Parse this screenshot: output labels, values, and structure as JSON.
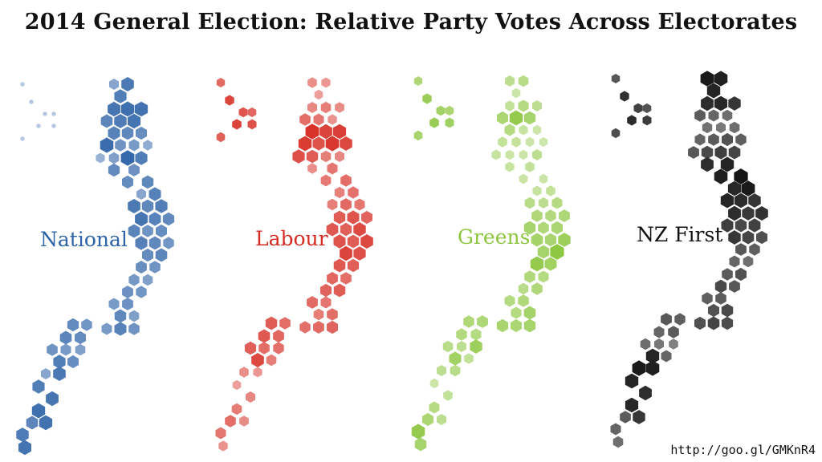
{
  "title": "2014 General Election: Relative Party Votes Across Electorates",
  "source": "http://goo.gl/GMKnR4",
  "chart_data": {
    "type": "hexbin-map",
    "scale": "relative party vote share per electorate (0 = lowest, 1 = highest); shown by hexagon size and color intensity",
    "panels": [
      {
        "party": "National",
        "color": "#2e63a8",
        "values": {
          "north_island": [
            0.45,
            0.82,
            0.78,
            0.85,
            0.9,
            0.88,
            0.72,
            0.8,
            0.86,
            0.75,
            0.7,
            0.65,
            0.92,
            0.6,
            0.55,
            0.4,
            0.35,
            0.5,
            0.95,
            0.78,
            0.68,
            0.62,
            0.7,
            0.66,
            0.45,
            0.75,
            0.82,
            0.7,
            0.78,
            0.85,
            0.74,
            0.68,
            0.72,
            0.6,
            0.65,
            0.76,
            0.7,
            0.58,
            0.66,
            0.72,
            0.64,
            0.6,
            0.56,
            0.5,
            0.62,
            0.58,
            0.55
          ],
          "south_island": [
            0.62,
            0.7,
            0.5,
            0.55,
            0.75,
            0.6,
            0.68,
            0.58,
            0.72,
            0.66,
            0.6,
            0.55,
            0.5,
            0.78,
            0.65
          ]
        }
      },
      {
        "party": "Labour",
        "color": "#d62b22",
        "values": {
          "north_island": [
            0.4,
            0.35,
            0.3,
            0.45,
            0.5,
            0.42,
            0.6,
            0.55,
            0.38,
            0.95,
            0.85,
            0.88,
            0.9,
            0.75,
            0.92,
            0.82,
            0.78,
            0.7,
            0.5,
            0.45,
            0.4,
            0.55,
            0.6,
            0.52,
            0.48,
            0.58,
            0.5,
            0.62,
            0.55,
            0.7,
            0.75,
            0.65,
            0.72,
            0.68,
            0.8,
            0.76,
            0.7,
            0.82,
            0.85,
            0.78,
            0.72,
            0.68,
            0.64,
            0.6,
            0.66,
            0.7,
            0.62
          ],
          "south_island": [
            0.55,
            0.5,
            0.6,
            0.58,
            0.62,
            0.66,
            0.7,
            0.6,
            0.72,
            0.64,
            0.68,
            0.6,
            0.58,
            0.82,
            0.5
          ]
        }
      },
      {
        "party": "Greens",
        "color": "#8cc63f",
        "values": {
          "north_island": [
            0.45,
            0.5,
            0.3,
            0.4,
            0.55,
            0.45,
            0.65,
            0.9,
            0.7,
            0.55,
            0.35,
            0.3,
            0.4,
            0.38,
            0.3,
            0.28,
            0.35,
            0.32,
            0.3,
            0.45,
            0.35,
            0.4,
            0.3,
            0.32,
            0.35,
            0.4,
            0.5,
            0.45,
            0.55,
            0.6,
            0.58,
            0.62,
            0.7,
            0.6,
            0.66,
            0.72,
            0.68,
            0.8,
            0.7,
            0.98,
            0.9,
            0.75,
            0.6,
            0.55,
            0.5,
            0.6,
            0.55
          ],
          "south_island": [
            0.6,
            0.55,
            0.72,
            0.68,
            0.65,
            0.7,
            0.6,
            0.62,
            0.58,
            0.55,
            0.5,
            0.45,
            0.8,
            0.75,
            0.4
          ]
        }
      },
      {
        "party": "NZ First",
        "color": "#111111",
        "values": {
          "north_island": [
            0.95,
            0.92,
            0.9,
            0.85,
            0.88,
            0.8,
            0.6,
            0.55,
            0.5,
            0.48,
            0.45,
            0.5,
            0.55,
            0.6,
            0.65,
            0.58,
            0.62,
            0.7,
            0.75,
            0.72,
            0.85,
            0.9,
            0.98,
            0.92,
            0.88,
            0.95,
            0.9,
            0.86,
            0.8,
            0.85,
            0.78,
            0.82,
            0.76,
            0.7,
            0.74,
            0.8,
            0.72,
            0.66,
            0.62,
            0.58,
            0.55,
            0.5,
            0.6,
            0.65,
            0.7,
            0.62,
            0.58
          ],
          "south_island": [
            0.6,
            0.65,
            0.7,
            0.66,
            0.72,
            0.68,
            0.62,
            0.58,
            0.55,
            0.6,
            0.5,
            0.45,
            0.4,
            0.9,
            0.55
          ]
        }
      }
    ]
  }
}
